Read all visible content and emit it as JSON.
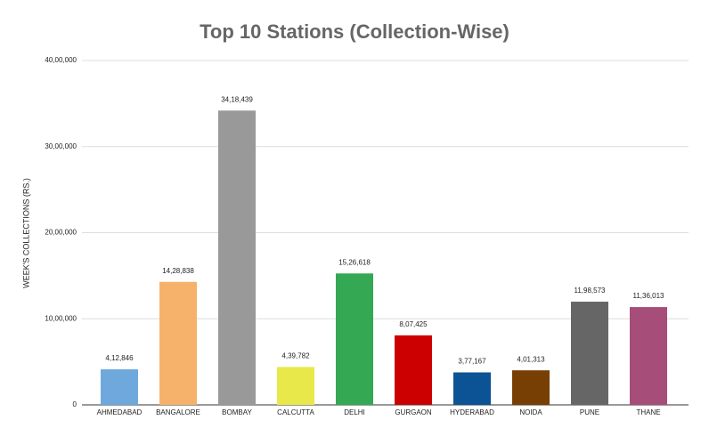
{
  "chart_data": {
    "type": "bar",
    "title": "Top 10 Stations (Collection-Wise)",
    "y_label": "WEEK'S COLLECTIONS (RS.)",
    "categories": [
      "AHMEDABAD",
      "BANGALORE",
      "BOMBAY",
      "CALCUTTA",
      "DELHI",
      "GURGAON",
      "HYDERABAD",
      "NOIDA",
      "PUNE",
      "THANE"
    ],
    "values": [
      412846,
      1428838,
      3418439,
      439782,
      1526618,
      807425,
      377167,
      401313,
      1198573,
      1136013
    ],
    "value_labels": [
      "4,12,846",
      "14,28,838",
      "34,18,439",
      "4,39,782",
      "15,26,618",
      "8,07,425",
      "3,77,167",
      "4,01,313",
      "11,98,573",
      "11,36,013"
    ],
    "colors": [
      "#6fa8dc",
      "#f6b26b",
      "#999999",
      "#e8e84a",
      "#34a853",
      "#cc0000",
      "#0b5394",
      "#783f04",
      "#666666",
      "#a64d79"
    ],
    "ylim": [
      0,
      4000000
    ],
    "yticks": [
      0,
      {
        "value": 1000000,
        "label": "10,00,000"
      },
      {
        "value": 2000000,
        "label": "20,00,000"
      },
      {
        "value": 3000000,
        "label": "30,00,000"
      },
      {
        "value": 4000000,
        "label": "40,00,000"
      }
    ],
    "grid": true
  }
}
